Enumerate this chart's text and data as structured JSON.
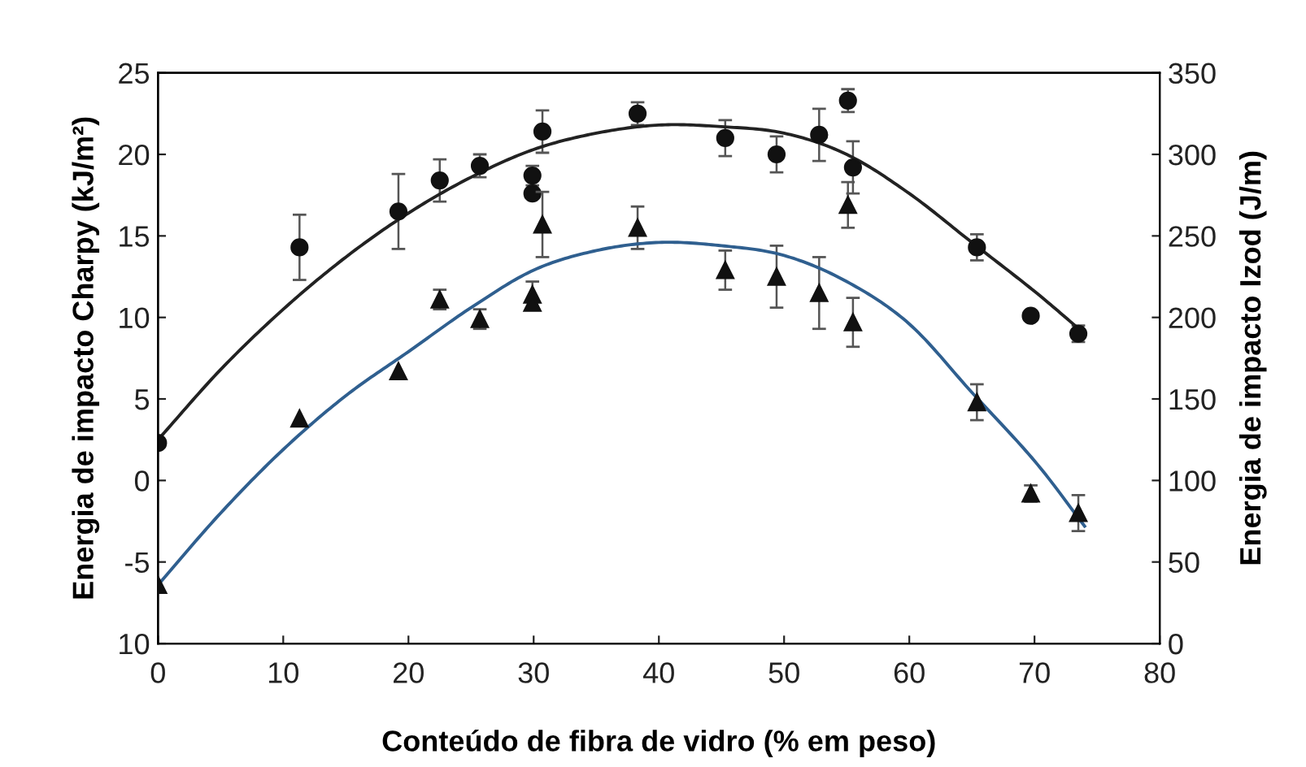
{
  "chart_data": {
    "type": "scatter",
    "xlabel": "Conteúdo de fibra de vidro (% em peso)",
    "ylabel": "Energia de impacto Charpy (kJ/m²)",
    "y2label": "Energia de impacto Izod (J/m)",
    "xlim": [
      0,
      80
    ],
    "xticks": [
      0,
      10,
      20,
      30,
      40,
      50,
      60,
      70,
      80
    ],
    "ylim": [
      -10,
      25
    ],
    "yticks": [
      {
        "value": -10,
        "label": "10"
      },
      -5,
      0,
      5,
      10,
      15,
      20,
      25
    ],
    "y2lim": [
      0,
      350
    ],
    "y2ticks": [
      0,
      50,
      100,
      150,
      200,
      250,
      300,
      350
    ],
    "grid": false,
    "legend": false,
    "series": [
      {
        "marker": "circle",
        "color": "#111111",
        "x": [
          0,
          11.3,
          19.2,
          22.5,
          25.7,
          29.9,
          29.9,
          30.7,
          38.3,
          45.3,
          49.4,
          52.8,
          55.1,
          55.5,
          65.4,
          69.7,
          73.5
        ],
        "values": [
          2.3,
          14.3,
          16.5,
          18.4,
          19.3,
          18.7,
          17.6,
          21.4,
          22.5,
          21.0,
          20.0,
          21.2,
          23.3,
          19.2,
          14.3,
          10.1,
          9.0
        ],
        "errors": [
          null,
          2.0,
          2.3,
          1.3,
          0.7,
          0.6,
          null,
          1.3,
          0.7,
          1.1,
          1.1,
          1.6,
          0.7,
          1.6,
          0.8,
          null,
          0.5
        ]
      },
      {
        "marker": "triangle",
        "color": "#111111",
        "axis": "y2",
        "x": [
          0,
          11.3,
          19.2,
          22.5,
          25.7,
          29.9,
          29.9,
          30.7,
          38.3,
          45.3,
          49.4,
          52.8,
          55.1,
          55.5,
          65.4,
          69.7,
          73.5
        ],
        "values": [
          36,
          138,
          167,
          211,
          199,
          214,
          209,
          257,
          255,
          229,
          225,
          215,
          269,
          197,
          148,
          92,
          80
        ],
        "errors": [
          null,
          null,
          null,
          6,
          6,
          8,
          null,
          20,
          13,
          12,
          19,
          22,
          14,
          15,
          11,
          5,
          11
        ]
      },
      {
        "type": "line",
        "marker": "none",
        "color": "#222222",
        "x": [
          0,
          5,
          10,
          15,
          20,
          25,
          30,
          35,
          40,
          45,
          50,
          55,
          60,
          65,
          70,
          74
        ],
        "values": [
          2.5,
          6.8,
          10.5,
          13.7,
          16.4,
          18.6,
          20.3,
          21.3,
          21.8,
          21.7,
          21.3,
          20.0,
          17.6,
          14.6,
          11.6,
          9.0
        ]
      },
      {
        "type": "line",
        "marker": "none",
        "color": "#2f5f8f",
        "axis": "y2",
        "x": [
          0,
          5,
          10,
          15,
          20,
          25,
          30,
          35,
          40,
          45,
          50,
          55,
          60,
          65,
          70,
          74
        ],
        "values": [
          36,
          80,
          119,
          152,
          179,
          206,
          229,
          241,
          246,
          244,
          238,
          222,
          196,
          154,
          112,
          72
        ]
      }
    ]
  }
}
